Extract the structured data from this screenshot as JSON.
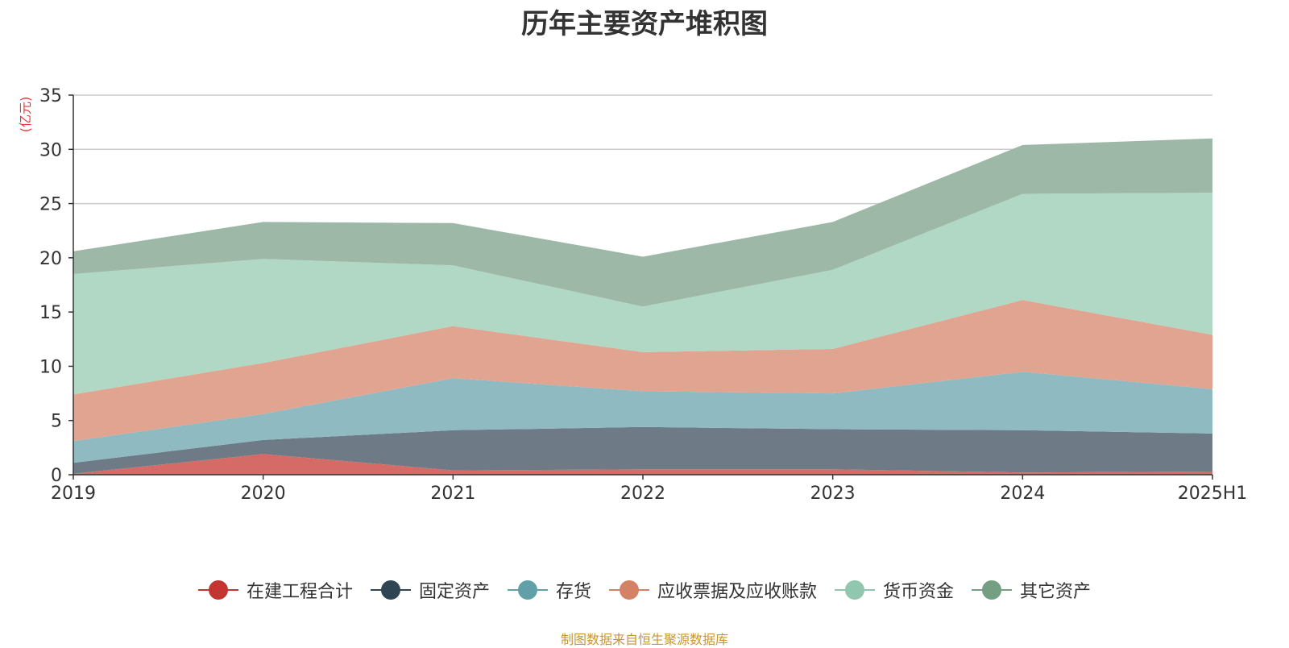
{
  "chart_data": {
    "type": "area",
    "stacked": true,
    "title": "历年主要资产堆积图",
    "ylabel": "(亿元)",
    "xlabel": "",
    "categories": [
      "2019",
      "2020",
      "2021",
      "2022",
      "2023",
      "2024",
      "2025H1"
    ],
    "ylim": [
      0,
      35
    ],
    "yticks": [
      0,
      5,
      10,
      15,
      20,
      25,
      30,
      35
    ],
    "grid": true,
    "legend_position": "bottom",
    "series": [
      {
        "name": "在建工程合计",
        "color": "#c23531",
        "area_color": "#d46b66",
        "values": [
          0.1,
          1.9,
          0.4,
          0.5,
          0.5,
          0.2,
          0.3
        ]
      },
      {
        "name": "固定资产",
        "color": "#2f4554",
        "area_color": "#6e7b87",
        "values": [
          1.0,
          1.3,
          3.7,
          3.9,
          3.7,
          3.9,
          3.5
        ]
      },
      {
        "name": "存货",
        "color": "#61a0a8",
        "area_color": "#8fbac1",
        "values": [
          2.0,
          2.4,
          4.8,
          3.3,
          3.3,
          5.4,
          4.1
        ]
      },
      {
        "name": "应收票据及应收账款",
        "color": "#d48265",
        "area_color": "#e0a490",
        "values": [
          4.3,
          4.7,
          4.8,
          3.6,
          4.1,
          6.6,
          5.0
        ]
      },
      {
        "name": "货币资金",
        "color": "#91c7ae",
        "area_color": "#b1d7c5",
        "values": [
          11.1,
          9.6,
          5.6,
          4.2,
          7.3,
          9.8,
          13.1
        ]
      },
      {
        "name": "其它资产",
        "color": "#749f83",
        "area_color": "#9db8a6",
        "values": [
          2.1,
          3.4,
          3.9,
          4.6,
          4.4,
          4.5,
          5.0
        ]
      }
    ]
  },
  "legend": {
    "items": [
      {
        "label": "在建工程合计"
      },
      {
        "label": "固定资产"
      },
      {
        "label": "存货"
      },
      {
        "label": "应收票据及应收账款"
      },
      {
        "label": "货币资金"
      },
      {
        "label": "其它资产"
      }
    ]
  },
  "footer": {
    "source_note": "制图数据来自恒生聚源数据库"
  }
}
